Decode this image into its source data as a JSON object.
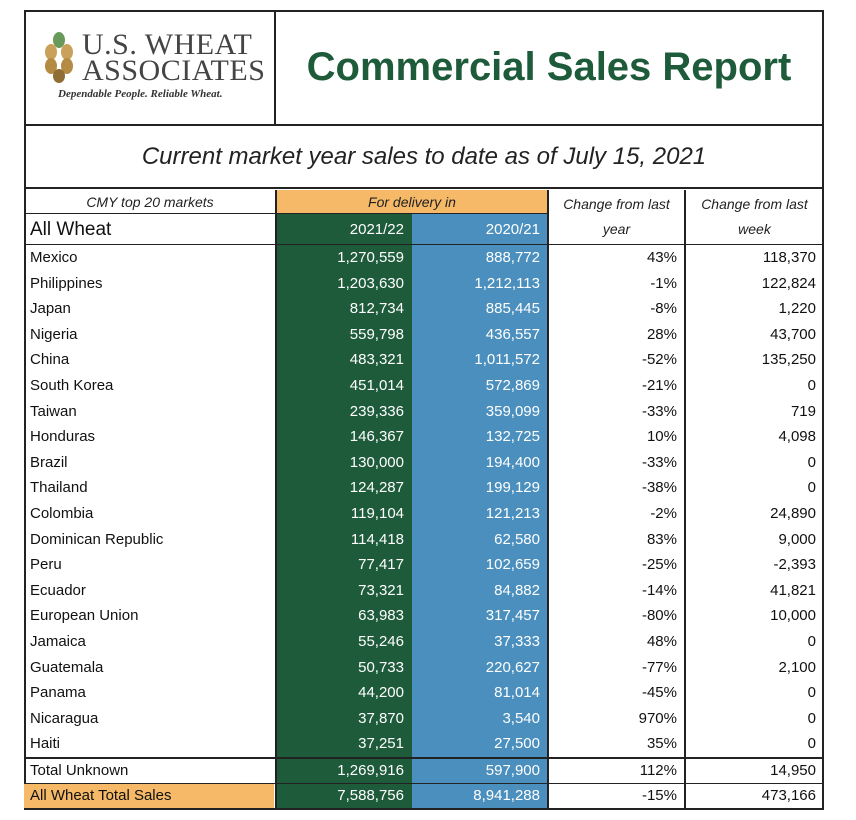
{
  "header": {
    "logo_line1": "U.S. WHEAT",
    "logo_line2": "ASSOCIATES",
    "logo_tagline": "Dependable People. Reliable Wheat.",
    "title": "Commercial Sales Report"
  },
  "subtitle": "Current market year sales to date as of July 15, 2021",
  "table": {
    "col_markets_header": "CMY top 20 markets",
    "col_delivery_header": "For delivery in",
    "col_change_year_header_1": "Change from last",
    "col_change_year_header_2": "year",
    "col_change_week_header_1": "Change from last",
    "col_change_week_header_2": "week",
    "section_label": "All Wheat",
    "year_a": "2021/22",
    "year_b": "2020/21",
    "rows": [
      {
        "market": "Mexico",
        "y2122": "1,270,559",
        "y2021": "888,772",
        "chg_year": "43%",
        "chg_week": "118,370"
      },
      {
        "market": "Philippines",
        "y2122": "1,203,630",
        "y2021": "1,212,113",
        "chg_year": "-1%",
        "chg_week": "122,824"
      },
      {
        "market": "Japan",
        "y2122": "812,734",
        "y2021": "885,445",
        "chg_year": "-8%",
        "chg_week": "1,220"
      },
      {
        "market": "Nigeria",
        "y2122": "559,798",
        "y2021": "436,557",
        "chg_year": "28%",
        "chg_week": "43,700"
      },
      {
        "market": "China",
        "y2122": "483,321",
        "y2021": "1,011,572",
        "chg_year": "-52%",
        "chg_week": "135,250"
      },
      {
        "market": "South Korea",
        "y2122": "451,014",
        "y2021": "572,869",
        "chg_year": "-21%",
        "chg_week": "0"
      },
      {
        "market": "Taiwan",
        "y2122": "239,336",
        "y2021": "359,099",
        "chg_year": "-33%",
        "chg_week": "719"
      },
      {
        "market": "Honduras",
        "y2122": "146,367",
        "y2021": "132,725",
        "chg_year": "10%",
        "chg_week": "4,098"
      },
      {
        "market": "Brazil",
        "y2122": "130,000",
        "y2021": "194,400",
        "chg_year": "-33%",
        "chg_week": "0"
      },
      {
        "market": "Thailand",
        "y2122": "124,287",
        "y2021": "199,129",
        "chg_year": "-38%",
        "chg_week": "0"
      },
      {
        "market": "Colombia",
        "y2122": "119,104",
        "y2021": "121,213",
        "chg_year": "-2%",
        "chg_week": "24,890"
      },
      {
        "market": "Dominican Republic",
        "y2122": "114,418",
        "y2021": "62,580",
        "chg_year": "83%",
        "chg_week": "9,000"
      },
      {
        "market": "Peru",
        "y2122": "77,417",
        "y2021": "102,659",
        "chg_year": "-25%",
        "chg_week": "-2,393"
      },
      {
        "market": "Ecuador",
        "y2122": "73,321",
        "y2021": "84,882",
        "chg_year": "-14%",
        "chg_week": "41,821"
      },
      {
        "market": "European Union",
        "y2122": "63,983",
        "y2021": "317,457",
        "chg_year": "-80%",
        "chg_week": "10,000"
      },
      {
        "market": "Jamaica",
        "y2122": "55,246",
        "y2021": "37,333",
        "chg_year": "48%",
        "chg_week": "0"
      },
      {
        "market": "Guatemala",
        "y2122": "50,733",
        "y2021": "220,627",
        "chg_year": "-77%",
        "chg_week": "2,100"
      },
      {
        "market": "Panama",
        "y2122": "44,200",
        "y2021": "81,014",
        "chg_year": "-45%",
        "chg_week": "0"
      },
      {
        "market": "Nicaragua",
        "y2122": "37,870",
        "y2021": "3,540",
        "chg_year": "970%",
        "chg_week": "0"
      },
      {
        "market": "Haiti",
        "y2122": "37,251",
        "y2021": "27,500",
        "chg_year": "35%",
        "chg_week": "0"
      }
    ],
    "unknown": {
      "market": "Total Unknown",
      "y2122": "1,269,916",
      "y2021": "597,900",
      "chg_year": "112%",
      "chg_week": "14,950"
    },
    "total": {
      "market": "All Wheat Total Sales",
      "y2122": "7,588,756",
      "y2021": "8,941,288",
      "chg_year": "-15%",
      "chg_week": "473,166"
    }
  },
  "colors": {
    "title_green": "#1e5b3a",
    "col_2122": "#1e5b3a",
    "col_2021": "#4a8fbd",
    "highlight_orange": "#f5b968"
  }
}
